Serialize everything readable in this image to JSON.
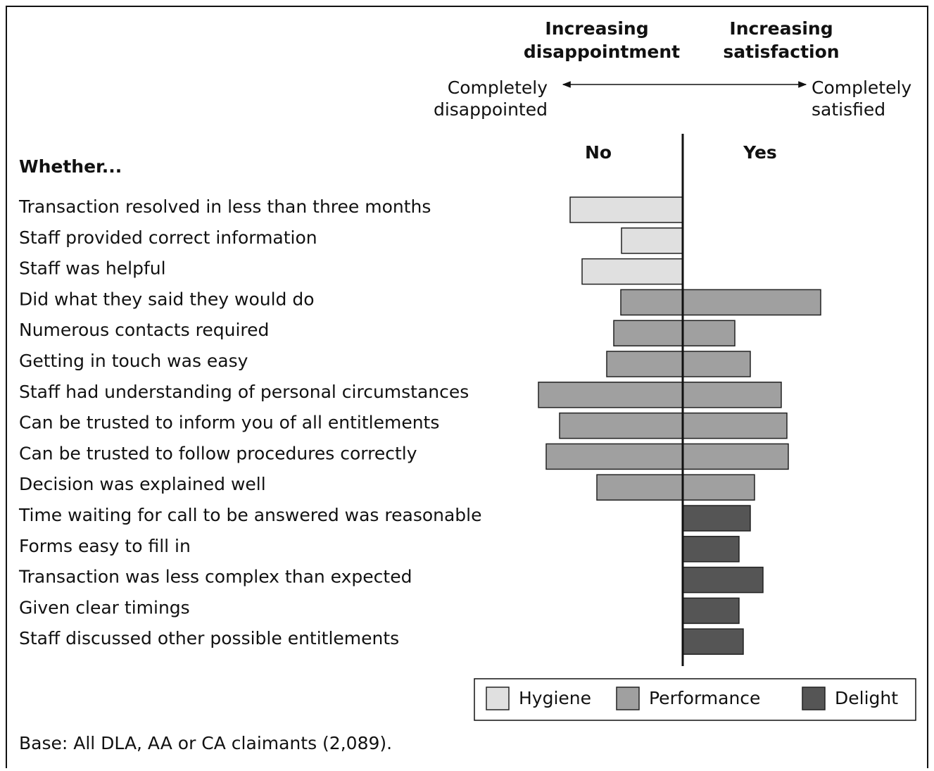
{
  "chart_data": {
    "type": "diverging-bar",
    "left_heading": [
      "Increasing",
      "disappointment"
    ],
    "right_heading": [
      "Increasing",
      "satisfaction"
    ],
    "left_end_label": [
      "Completely",
      "disappointed"
    ],
    "right_end_label": [
      "Completely",
      "satisfied"
    ],
    "categories_heading": "Whether...",
    "categories": [
      "Transaction resolved in less than three months",
      "Staff provided correct information",
      "Staff was helpful",
      "Did what they said they would do",
      "Numerous contacts required",
      "Getting in touch was easy",
      "Staff had understanding of personal circumstances",
      "Can be trusted to inform you of all entitlements",
      "Can be trusted to follow procedures correctly",
      "Decision was explained well",
      "Time waiting for call to be answered was reasonable",
      "Forms easy to fill in",
      "Transaction was less complex than expected",
      "Given clear timings",
      "Staff discussed other possible entitlements"
    ],
    "series": [
      {
        "name": "No",
        "values": [
          160,
          87,
          143,
          88,
          98,
          108,
          205,
          175,
          194,
          122,
          null,
          null,
          null,
          null,
          null
        ]
      },
      {
        "name": "Yes",
        "values": [
          null,
          null,
          null,
          196,
          74,
          96,
          140,
          148,
          150,
          102,
          96,
          80,
          114,
          80,
          86
        ]
      }
    ],
    "legend": [
      {
        "name": "Hygiene",
        "color": "#e0e0e0"
      },
      {
        "name": "Performance",
        "color": "#a0a0a0"
      },
      {
        "name": "Delight",
        "color": "#555555"
      }
    ],
    "category_groups": [
      0,
      0,
      0,
      1,
      1,
      1,
      1,
      1,
      1,
      1,
      2,
      2,
      2,
      2,
      2
    ],
    "footnote": "Base: All DLA, AA or CA claimants (2,089)."
  }
}
